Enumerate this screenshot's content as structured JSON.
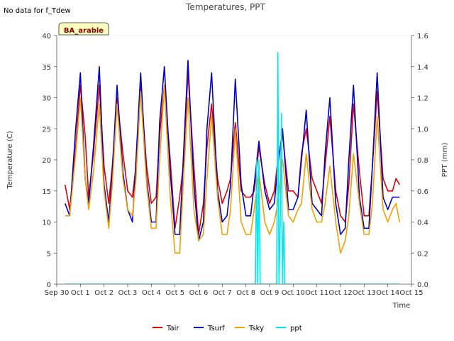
{
  "chart_data": {
    "type": "line",
    "title": "Temperatures, PPT",
    "note": "No data for f_Tdew",
    "badge": "BA_arable",
    "xlabel": "Time",
    "ylabel": "Temperature (C)",
    "ylabel_right": "PPT (mm)",
    "xlim": [
      0,
      15
    ],
    "ylim": [
      0,
      40
    ],
    "ylim_right": [
      0,
      1.6
    ],
    "x_tick_values": [
      0,
      1,
      2,
      3,
      4,
      5,
      6,
      7,
      8,
      9,
      10,
      11,
      12,
      13,
      14,
      15
    ],
    "x_tick_labels": [
      "Sep 30",
      "Oct 1",
      "Oct 2",
      "Oct 3",
      "Oct 4",
      "Oct 5",
      "Oct 6",
      "Oct 7",
      "Oct 8",
      "Oct 9",
      "Oct 10",
      "Oct 11",
      "Oct 12",
      "Oct 13",
      "Oct 14",
      "Oct 15"
    ],
    "y_ticks": [
      0,
      5,
      10,
      15,
      20,
      25,
      30,
      35,
      40
    ],
    "y_right_ticks": [
      "0.0",
      "0.2",
      "0.4",
      "0.6",
      "0.8",
      "1.0",
      "1.2",
      "1.4",
      "1.6"
    ],
    "grid": "horizontal bands",
    "legend_position": "bottom-center",
    "colors": {
      "Tair": "#e00000",
      "Tsurf": "#0000cc",
      "Tsky": "#f0a000",
      "ppt": "#00e5ee",
      "band": "#f0f0f0",
      "badge_bg": "#ffffc0"
    },
    "series": [
      {
        "name": "Tair",
        "axis": "left",
        "x": [
          0.35,
          0.55,
          0.8,
          1.0,
          1.2,
          1.35,
          1.55,
          1.8,
          2.0,
          2.2,
          2.35,
          2.55,
          2.8,
          3.0,
          3.2,
          3.35,
          3.55,
          3.8,
          4.0,
          4.2,
          4.35,
          4.55,
          4.8,
          5.0,
          5.2,
          5.35,
          5.55,
          5.8,
          6.0,
          6.2,
          6.35,
          6.55,
          6.8,
          7.0,
          7.2,
          7.35,
          7.55,
          7.8,
          8.0,
          8.2,
          8.35,
          8.55,
          8.8,
          9.0,
          9.2,
          9.35,
          9.55,
          9.8,
          10.0,
          10.2,
          10.35,
          10.55,
          10.8,
          11.0,
          11.2,
          11.35,
          11.55,
          11.8,
          12.0,
          12.2,
          12.35,
          12.55,
          12.8,
          13.0,
          13.2,
          13.35,
          13.55,
          13.8,
          14.0,
          14.2,
          14.35,
          14.5
        ],
        "y": [
          16,
          12,
          22,
          32,
          24,
          14,
          21,
          32,
          19,
          13,
          19,
          30,
          21,
          15,
          14,
          19,
          32,
          19,
          13,
          14,
          24,
          32,
          20,
          9,
          14,
          19,
          34,
          19,
          8,
          13,
          22,
          29,
          17,
          13,
          15,
          17,
          26,
          15,
          14,
          14,
          15,
          22,
          16,
          13,
          15,
          20,
          24,
          15,
          15,
          14,
          21,
          25,
          17,
          15,
          13,
          19,
          27,
          15,
          11,
          10,
          16,
          29,
          18,
          11,
          11,
          19,
          31,
          17,
          15,
          15,
          17,
          16
        ]
      },
      {
        "name": "Tsurf",
        "axis": "left",
        "x": [
          0.35,
          0.55,
          0.8,
          1.0,
          1.2,
          1.35,
          1.55,
          1.8,
          2.0,
          2.2,
          2.35,
          2.55,
          2.8,
          3.0,
          3.2,
          3.35,
          3.55,
          3.8,
          4.0,
          4.2,
          4.35,
          4.55,
          4.8,
          5.0,
          5.2,
          5.35,
          5.55,
          5.8,
          6.0,
          6.2,
          6.35,
          6.55,
          6.8,
          7.0,
          7.2,
          7.35,
          7.55,
          7.8,
          8.0,
          8.2,
          8.35,
          8.55,
          8.8,
          9.0,
          9.2,
          9.35,
          9.55,
          9.8,
          10.0,
          10.2,
          10.35,
          10.55,
          10.8,
          11.0,
          11.2,
          11.35,
          11.55,
          11.8,
          12.0,
          12.2,
          12.35,
          12.55,
          12.8,
          13.0,
          13.2,
          13.35,
          13.55,
          13.8,
          14.0,
          14.2,
          14.35,
          14.5
        ],
        "y": [
          13,
          11,
          25,
          34,
          17,
          13,
          22,
          35,
          16,
          10,
          18,
          32,
          18,
          12,
          10,
          20,
          34,
          17,
          10,
          10,
          26,
          35,
          18,
          8,
          8,
          20,
          36,
          16,
          7,
          10,
          25,
          34,
          15,
          10,
          11,
          16,
          33,
          16,
          11,
          11,
          16,
          23,
          15,
          12,
          13,
          19,
          25,
          12,
          12,
          14,
          20,
          28,
          13,
          12,
          11,
          21,
          30,
          13,
          8,
          9,
          20,
          32,
          14,
          9,
          9,
          19,
          34,
          14,
          12,
          14,
          14,
          14
        ]
      },
      {
        "name": "Tsky",
        "axis": "left",
        "x": [
          0.35,
          0.55,
          0.8,
          1.0,
          1.2,
          1.35,
          1.55,
          1.8,
          2.0,
          2.2,
          2.35,
          2.55,
          2.8,
          3.0,
          3.2,
          3.35,
          3.55,
          3.8,
          4.0,
          4.2,
          4.35,
          4.55,
          4.8,
          5.0,
          5.2,
          5.35,
          5.55,
          5.8,
          6.0,
          6.2,
          6.35,
          6.55,
          6.8,
          7.0,
          7.2,
          7.35,
          7.55,
          7.8,
          8.0,
          8.2,
          8.35,
          8.55,
          8.8,
          9.0,
          9.2,
          9.35,
          9.55,
          9.8,
          10.0,
          10.2,
          10.35,
          10.55,
          10.8,
          11.0,
          11.2,
          11.35,
          11.55,
          11.8,
          12.0,
          12.2,
          12.35,
          12.55,
          12.8,
          13.0,
          13.2,
          13.35,
          13.55,
          13.8,
          14.0,
          14.2,
          14.35,
          14.5
        ],
        "y": [
          11,
          11,
          21,
          30,
          17,
          12,
          18,
          29,
          15,
          9,
          16,
          29,
          17,
          12,
          11,
          17,
          31,
          16,
          9,
          9,
          20,
          32,
          14,
          5,
          5,
          16,
          30,
          12,
          7,
          8,
          17,
          27,
          14,
          8,
          8,
          12,
          25,
          10,
          8,
          8,
          12,
          18,
          10,
          8,
          10,
          13,
          20,
          11,
          10,
          12,
          13,
          21,
          12,
          10,
          10,
          13,
          19,
          10,
          5,
          7,
          11,
          21,
          13,
          8,
          8,
          13,
          27,
          12,
          10,
          12,
          13,
          10
        ]
      },
      {
        "name": "ppt",
        "axis": "right",
        "x": [
          0.35,
          8.4,
          8.45,
          8.5,
          8.55,
          8.6,
          9.3,
          9.35,
          9.4,
          9.45,
          9.5,
          9.55,
          9.6,
          9.65,
          9.7,
          14.5
        ],
        "y": [
          0,
          0,
          0.8,
          0,
          0.8,
          0,
          0,
          1.49,
          0,
          0.4,
          1.1,
          0,
          0.4,
          0,
          0,
          0
        ]
      }
    ]
  }
}
